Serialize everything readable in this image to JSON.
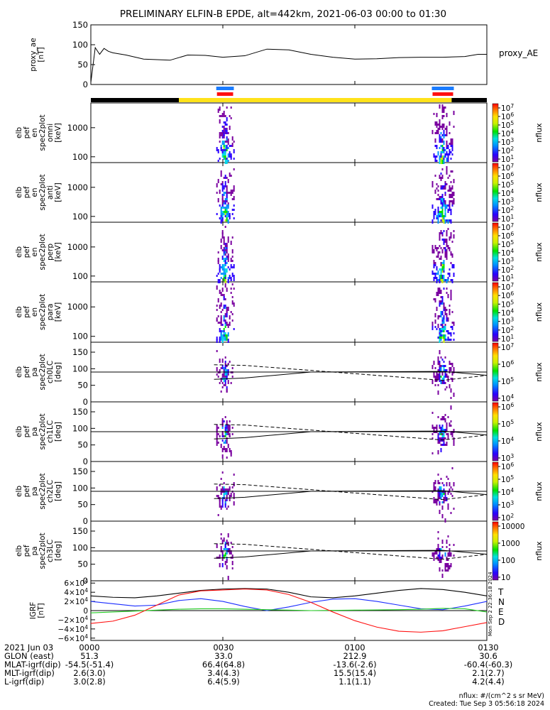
{
  "title": "PRELIMINARY ELFIN-B EPDE, alt=442km, 2021-06-03 00:00 to 01:30",
  "colors": {
    "science_bar": "#1a7cff",
    "fast_bar": "#ff1010",
    "orbit_dark": "#000000",
    "orbit_sunlit": "#ffe21a",
    "grf_T": "#000000",
    "grf_N": "#1a2cff",
    "grf_E": "#22cc22",
    "grf_D": "#ff1010"
  },
  "chart_data": [
    {
      "type": "line",
      "panel": "proxy_ae",
      "ylabel": [
        "proxy_ae",
        "[nT]"
      ],
      "ylim": [
        0,
        150
      ],
      "yticks": [
        "150",
        "100",
        "50",
        "0"
      ],
      "legend": [
        "proxy_AE"
      ],
      "x_min": [
        0,
        1,
        2,
        3,
        4,
        5,
        8,
        12,
        18,
        22,
        26,
        30,
        35,
        40,
        45,
        50,
        55,
        60,
        65,
        70,
        75,
        80,
        85,
        88,
        90
      ],
      "series": [
        {
          "values": [
            0,
            94,
            76,
            92,
            84,
            80,
            74,
            63,
            60,
            74,
            73,
            68,
            72,
            90,
            88,
            76,
            68,
            63,
            64,
            67,
            68,
            68,
            70,
            76,
            76
          ]
        }
      ]
    },
    {
      "type": "heatmap",
      "panel": "omni",
      "ylabel": [
        "elb",
        "pef",
        "en",
        "spec2plot",
        "omni",
        "[keV]"
      ],
      "yscale": "log",
      "yticks": [
        "1000",
        "100"
      ],
      "colorbar_label": "nflux",
      "colorbar_ticks": [
        "10^7",
        "10^6",
        "10^5",
        "10^4",
        "10^3",
        "10^2",
        "10^1"
      ],
      "passes_min": [
        [
          28.5,
          32.5
        ],
        [
          77.5,
          82.5
        ]
      ]
    },
    {
      "type": "heatmap",
      "panel": "anti",
      "ylabel": [
        "elb",
        "pef",
        "en",
        "spec2plot",
        "anti",
        "[keV]"
      ],
      "yscale": "log",
      "yticks": [
        "1000",
        "100"
      ],
      "colorbar_label": "nflux",
      "colorbar_ticks": [
        "10^7",
        "10^6",
        "10^5",
        "10^4",
        "10^3",
        "10^2",
        "10^1"
      ]
    },
    {
      "type": "heatmap",
      "panel": "perp",
      "ylabel": [
        "elb",
        "pef",
        "en",
        "spec2plot",
        "perp",
        "[keV]"
      ],
      "yscale": "log",
      "yticks": [
        "1000",
        "100"
      ],
      "colorbar_label": "nflux",
      "colorbar_ticks": [
        "10^7",
        "10^6",
        "10^5",
        "10^4",
        "10^3",
        "10^2",
        "10^1"
      ]
    },
    {
      "type": "heatmap",
      "panel": "para",
      "ylabel": [
        "elb",
        "pef",
        "en",
        "spec2plot",
        "para",
        "[keV]"
      ],
      "yscale": "log",
      "yticks": [
        "1000",
        "100"
      ],
      "colorbar_label": "nflux",
      "colorbar_ticks": [
        "10^7",
        "10^6",
        "10^5",
        "10^4",
        "10^3",
        "10^2",
        "10^1"
      ]
    },
    {
      "type": "heatmap",
      "panel": "ch0LC",
      "ylabel": [
        "elb",
        "pef",
        "pa",
        "spec2plot",
        "ch0LC",
        "[deg]"
      ],
      "ylim": [
        0,
        180
      ],
      "yticks": [
        "150",
        "100",
        "50",
        "0"
      ],
      "colorbar_label": "nflux",
      "colorbar_ticks": [
        "10^7",
        "10^6",
        "10^5",
        "10^4"
      ]
    },
    {
      "type": "heatmap",
      "panel": "ch1LC",
      "ylabel": [
        "elb",
        "pef",
        "pa",
        "spec2plot",
        "ch1LC",
        "[deg]"
      ],
      "ylim": [
        0,
        180
      ],
      "yticks": [
        "150",
        "100",
        "50",
        "0"
      ],
      "colorbar_label": "nflux",
      "colorbar_ticks": [
        "10^6",
        "10^5",
        "10^4",
        "10^3"
      ]
    },
    {
      "type": "heatmap",
      "panel": "ch2LC",
      "ylabel": [
        "elb",
        "pef",
        "pa",
        "spec2plot",
        "ch2LC",
        "[deg]"
      ],
      "ylim": [
        0,
        180
      ],
      "yticks": [
        "150",
        "100",
        "50",
        "0"
      ],
      "colorbar_label": "nflux",
      "colorbar_ticks": [
        "10^6",
        "10^5",
        "10^4",
        "10^3",
        "10^2"
      ]
    },
    {
      "type": "heatmap",
      "panel": "ch3LC",
      "ylabel": [
        "elb",
        "pef",
        "pa",
        "spec2plot",
        "ch3LC",
        "[deg]"
      ],
      "ylim": [
        0,
        180
      ],
      "yticks": [
        "150",
        "100",
        "50",
        "0"
      ],
      "colorbar_label": "nflux",
      "colorbar_ticks": [
        "10000",
        "1000",
        "100",
        "10"
      ]
    },
    {
      "type": "line",
      "panel": "IGRF",
      "ylabel": [
        "IGRF",
        "[nT]"
      ],
      "ylim": [
        -65000,
        65000
      ],
      "yticks": [
        "6×10^4",
        "4×10^4",
        "2×10^4",
        "0",
        "−2×10^4",
        "−4×10^4",
        "−6×10^4"
      ],
      "legend": [
        "T",
        "N",
        "E",
        "D"
      ],
      "side_text": "Mon Sep  2 22:36:18 2024",
      "x_min": [
        0,
        5,
        10,
        15,
        20,
        25,
        30,
        35,
        40,
        45,
        50,
        55,
        60,
        65,
        70,
        75,
        80,
        85,
        90
      ],
      "series": [
        {
          "name": "T",
          "values": [
            32000,
            29000,
            28000,
            32000,
            38000,
            44000,
            47000,
            48000,
            47000,
            40000,
            30000,
            28000,
            32000,
            38000,
            44000,
            48000,
            46000,
            40000,
            32000
          ]
        },
        {
          "name": "N",
          "values": [
            20000,
            15000,
            10000,
            12000,
            22000,
            26000,
            20000,
            9000,
            0,
            8000,
            18000,
            25000,
            26000,
            20000,
            12000,
            4000,
            2000,
            10000,
            20000
          ]
        },
        {
          "name": "E",
          "values": [
            -5000,
            -3000,
            -1000,
            1000,
            3000,
            4000,
            4000,
            3000,
            2000,
            1000,
            0,
            500,
            1000,
            1500,
            2000,
            3000,
            5000,
            4000,
            -3000
          ]
        },
        {
          "name": "D",
          "values": [
            -28000,
            -23000,
            -10000,
            12000,
            34000,
            43000,
            45000,
            47000,
            45000,
            35000,
            18000,
            -3000,
            -22000,
            -36000,
            -45000,
            -47000,
            -44000,
            -35000,
            -26000
          ]
        }
      ]
    }
  ],
  "x_axis": {
    "ticks_min": [
      0,
      30,
      60,
      90
    ],
    "tick_labels": [
      "0000",
      "0030",
      "0100",
      "0130"
    ]
  },
  "footer": {
    "rows": [
      {
        "label": "2021 Jun 03",
        "values": [
          "0000",
          "0030",
          "0100",
          "0130"
        ]
      },
      {
        "label": "GLON (east)",
        "values": [
          "51.3",
          "33.0",
          "212.9",
          "30.6"
        ]
      },
      {
        "label": "MLAT-igrf(dip)",
        "values": [
          "-54.5(-51.4)",
          "66.4(64.8)",
          "-13.6(-2.6)",
          "-60.4(-60.3)"
        ]
      },
      {
        "label": "MLT-igrf(dip)",
        "values": [
          "2.6(3.0)",
          "3.4(4.3)",
          "15.5(15.4)",
          "2.1(2.7)"
        ]
      },
      {
        "label": "L-igrf(dip)",
        "values": [
          "3.0(2.8)",
          "6.4(5.9)",
          "1.1(1.1)",
          "4.2(4.4)"
        ]
      }
    ],
    "units_note": "nflux: #/(cm^2 s sr MeV)",
    "created": "Created: Tue Sep  3 05:56:18 2024"
  }
}
